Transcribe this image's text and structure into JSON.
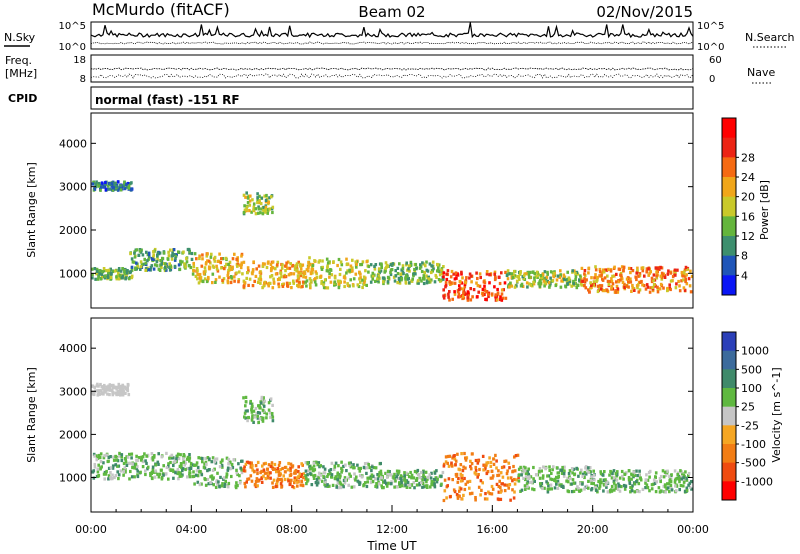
{
  "header": {
    "station": "McMurdo (fitACF)",
    "beam": "Beam 02",
    "date": "02/Nov/2015"
  },
  "top_panels": {
    "nsky_label": "N.Sky",
    "nsky_ticks": [
      "10^5",
      "10^0"
    ],
    "nsearch_label": "N.Search",
    "nsearch_ticks": [
      "10^5",
      "10^0"
    ],
    "freq_label": "Freq.",
    "freq_unit": "[MHz]",
    "freq_ticks": [
      "18",
      "8"
    ],
    "nave_label": "Nave",
    "nave_ticks": [
      "60",
      "0"
    ],
    "cpid_label": "CPID",
    "cpid_text": "normal (fast) -151 RF"
  },
  "colors": {
    "power": [
      "#0a16f5",
      "#1f55b8",
      "#3d8f6e",
      "#64b53c",
      "#c9c92a",
      "#f0a61a",
      "#f56a12",
      "#ec2414",
      "#ff0000"
    ],
    "velocity": [
      "#2b3fb8",
      "#3c6b9c",
      "#3f8a6a",
      "#5fb840",
      "#c6c6c6",
      "#f5a623",
      "#f27d14",
      "#ef4b10",
      "#ff0000"
    ]
  },
  "chart_data": [
    {
      "type": "heatmap",
      "name": "power",
      "xlabel": "",
      "ylabel": "Slant Range [km]",
      "xlim": [
        "00:00",
        "24:00"
      ],
      "ylim": [
        200,
        4700
      ],
      "yticks": [
        "1000",
        "2000",
        "3000",
        "4000"
      ],
      "colorbar_label": "Power [dB]",
      "colorbar_ticks": [
        "4",
        "8",
        "12",
        "16",
        "20",
        "24",
        "28"
      ],
      "colorbar_range": [
        0,
        32
      ],
      "bands": [
        {
          "t0": 0.0,
          "t1": 1.6,
          "r0": 900,
          "r1": 1150,
          "value": 12
        },
        {
          "t0": 0.0,
          "t1": 1.6,
          "r0": 2950,
          "r1": 3150,
          "value": 6
        },
        {
          "t0": 1.5,
          "t1": 4.0,
          "r0": 1100,
          "r1": 1600,
          "value": 10
        },
        {
          "t0": 4.0,
          "t1": 6.0,
          "r0": 800,
          "r1": 1500,
          "value": 18
        },
        {
          "t0": 6.0,
          "t1": 7.2,
          "r0": 2400,
          "r1": 2900,
          "value": 14
        },
        {
          "t0": 6.0,
          "t1": 8.5,
          "r0": 700,
          "r1": 1300,
          "value": 20
        },
        {
          "t0": 8.5,
          "t1": 11.0,
          "r0": 700,
          "r1": 1400,
          "value": 16
        },
        {
          "t0": 11.0,
          "t1": 14.0,
          "r0": 800,
          "r1": 1300,
          "value": 12
        },
        {
          "t0": 14.0,
          "t1": 16.5,
          "r0": 400,
          "r1": 1100,
          "value": 26
        },
        {
          "t0": 16.5,
          "t1": 19.5,
          "r0": 700,
          "r1": 1100,
          "value": 14
        },
        {
          "t0": 19.5,
          "t1": 24.0,
          "r0": 600,
          "r1": 1200,
          "value": 22
        }
      ]
    },
    {
      "type": "heatmap",
      "name": "velocity",
      "xlabel": "Time UT",
      "ylabel": "Slant Range [km]",
      "xlim": [
        "00:00",
        "24:00"
      ],
      "xticks": [
        "00:00",
        "04:00",
        "08:00",
        "12:00",
        "16:00",
        "20:00",
        "00:00"
      ],
      "ylim": [
        200,
        4700
      ],
      "yticks": [
        "1000",
        "2000",
        "3000",
        "4000"
      ],
      "colorbar_label": "Velocity [m s^-1]",
      "colorbar_ticks": [
        "1000",
        "500",
        "100",
        "25",
        "-25",
        "-100",
        "-500",
        "-1000"
      ],
      "bands": [
        {
          "t0": 0.0,
          "t1": 4.0,
          "r0": 1000,
          "r1": 1600,
          "value": 100
        },
        {
          "t0": 0.0,
          "t1": 1.5,
          "r0": 2950,
          "r1": 3200,
          "value": 0
        },
        {
          "t0": 4.0,
          "t1": 6.0,
          "r0": 800,
          "r1": 1500,
          "value": 100
        },
        {
          "t0": 6.0,
          "t1": 7.2,
          "r0": 2300,
          "r1": 2900,
          "value": 100
        },
        {
          "t0": 6.0,
          "t1": 8.5,
          "r0": 800,
          "r1": 1400,
          "value": -100
        },
        {
          "t0": 8.5,
          "t1": 11.5,
          "r0": 800,
          "r1": 1400,
          "value": 100
        },
        {
          "t0": 11.5,
          "t1": 14.0,
          "r0": 800,
          "r1": 1200,
          "value": 100
        },
        {
          "t0": 14.0,
          "t1": 17.0,
          "r0": 500,
          "r1": 1600,
          "value": -100
        },
        {
          "t0": 17.0,
          "t1": 20.0,
          "r0": 700,
          "r1": 1300,
          "value": 100
        },
        {
          "t0": 20.0,
          "t1": 24.0,
          "r0": 700,
          "r1": 1200,
          "value": 100
        }
      ]
    }
  ]
}
